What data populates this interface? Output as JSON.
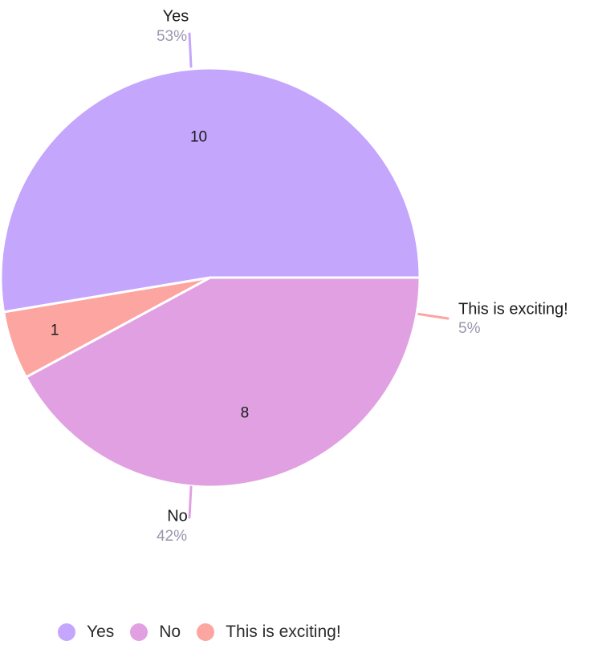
{
  "chart_data": {
    "type": "pie",
    "slices": [
      {
        "label": "Yes",
        "value": 10,
        "percent": "53%",
        "color": "#c4a6fd"
      },
      {
        "label": "This is exciting!",
        "value": 1,
        "percent": "5%",
        "color": "#fca5a1"
      },
      {
        "label": "No",
        "value": 8,
        "percent": "42%",
        "color": "#e1a0e2"
      }
    ],
    "legend": {
      "placement": "bottom-left",
      "items": [
        {
          "label": "Yes",
          "color": "#c4a6fd"
        },
        {
          "label": "No",
          "color": "#e1a0e2"
        },
        {
          "label": "This is exciting!",
          "color": "#fca5a1"
        }
      ]
    },
    "start_angle": "3 o'clock",
    "direction": "counterclockwise",
    "label_color": "#1a1a1a",
    "percent_color": "#9a95ad"
  }
}
